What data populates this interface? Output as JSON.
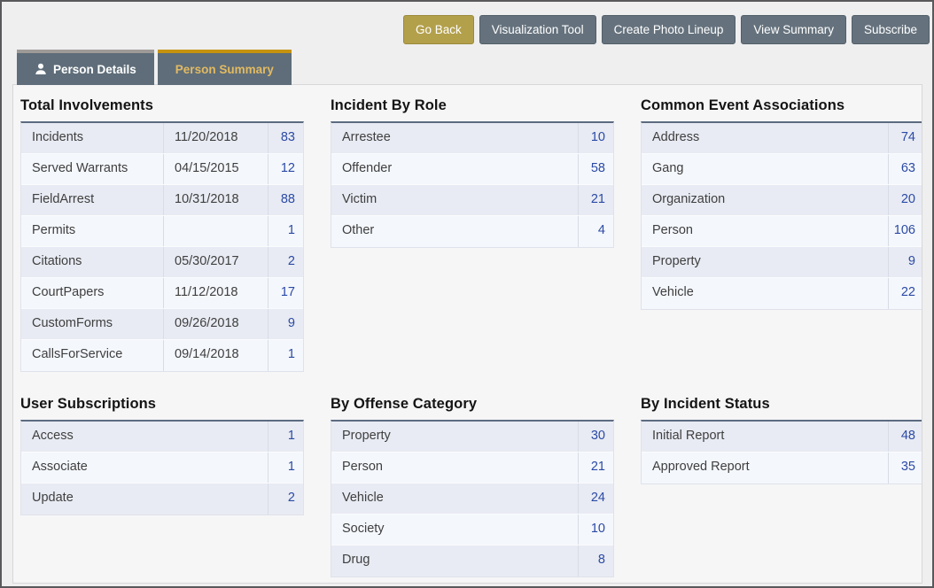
{
  "toolbar": {
    "buttons": [
      {
        "name": "go-back-button",
        "label": "Go Back",
        "style": "gold"
      },
      {
        "name": "visualization-tool-button",
        "label": "Visualization Tool",
        "style": "gray"
      },
      {
        "name": "create-photo-lineup-button",
        "label": "Create Photo Lineup",
        "style": "gray"
      },
      {
        "name": "view-summary-button",
        "label": "View Summary",
        "style": "gray"
      },
      {
        "name": "subscribe-button",
        "label": "Subscribe",
        "style": "gray"
      }
    ]
  },
  "tabs": {
    "person_details": {
      "label": "Person Details",
      "icon": "person-icon",
      "active": false
    },
    "person_summary": {
      "label": "Person Summary",
      "active": true
    }
  },
  "colors": {
    "accent_gold": "#c6930f",
    "gold_button": "#b3a04b",
    "slate_button": "#65727d",
    "tab_background": "#5e6d79",
    "active_tab_text": "#e3ba62",
    "row_dark": "#e8ebf3",
    "row_light": "#f4f7fc",
    "count_link_blue": "#2b4aa5",
    "table_top_border": "#5c6b80"
  },
  "panels": [
    {
      "name": "total-involvements",
      "title": "Total Involvements",
      "has_dates": true,
      "rows": [
        {
          "label": "Incidents",
          "date": "11/20/2018",
          "count": 83
        },
        {
          "label": "Served Warrants",
          "date": "04/15/2015",
          "count": 12
        },
        {
          "label": "FieldArrest",
          "date": "10/31/2018",
          "count": 88
        },
        {
          "label": "Permits",
          "date": "",
          "count": 1
        },
        {
          "label": "Citations",
          "date": "05/30/2017",
          "count": 2
        },
        {
          "label": "CourtPapers",
          "date": "11/12/2018",
          "count": 17
        },
        {
          "label": "CustomForms",
          "date": "09/26/2018",
          "count": 9
        },
        {
          "label": "CallsForService",
          "date": "09/14/2018",
          "count": 1
        }
      ]
    },
    {
      "name": "incident-by-role",
      "title": "Incident By Role",
      "has_dates": false,
      "rows": [
        {
          "label": "Arrestee",
          "count": 10
        },
        {
          "label": "Offender",
          "count": 58
        },
        {
          "label": "Victim",
          "count": 21
        },
        {
          "label": "Other",
          "count": 4
        }
      ]
    },
    {
      "name": "common-event-associations",
      "title": "Common Event Associations",
      "has_dates": false,
      "rows": [
        {
          "label": "Address",
          "count": 74
        },
        {
          "label": "Gang",
          "count": 63
        },
        {
          "label": "Organization",
          "count": 20
        },
        {
          "label": "Person",
          "count": 106
        },
        {
          "label": "Property",
          "count": 9
        },
        {
          "label": "Vehicle",
          "count": 22
        }
      ]
    },
    {
      "name": "user-subscriptions",
      "title": "User Subscriptions",
      "has_dates": false,
      "rows": [
        {
          "label": "Access",
          "count": 1
        },
        {
          "label": "Associate",
          "count": 1
        },
        {
          "label": "Update",
          "count": 2
        }
      ]
    },
    {
      "name": "by-offense-category",
      "title": "By Offense Category",
      "has_dates": false,
      "rows": [
        {
          "label": "Property",
          "count": 30
        },
        {
          "label": "Person",
          "count": 21
        },
        {
          "label": "Vehicle",
          "count": 24
        },
        {
          "label": "Society",
          "count": 10
        },
        {
          "label": "Drug",
          "count": 8
        }
      ]
    },
    {
      "name": "by-incident-status",
      "title": "By Incident Status",
      "has_dates": false,
      "rows": [
        {
          "label": "Initial Report",
          "count": 48
        },
        {
          "label": "Approved Report",
          "count": 35
        }
      ]
    }
  ]
}
